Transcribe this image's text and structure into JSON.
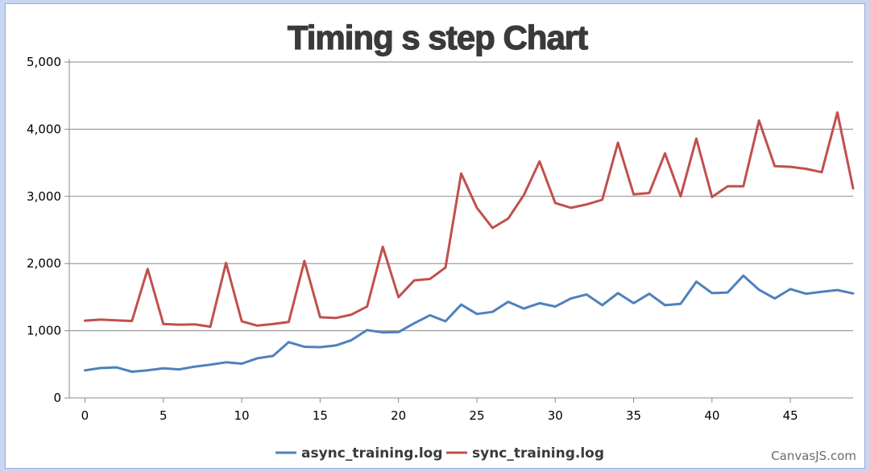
{
  "chart_data": {
    "type": "line",
    "title": "Timing s step Chart",
    "xlabel": "",
    "ylabel": "",
    "xlim": [
      -1,
      49
    ],
    "ylim": [
      0,
      5000
    ],
    "x_ticks": [
      0,
      5,
      10,
      15,
      20,
      25,
      30,
      35,
      40,
      45
    ],
    "x_tick_labels": [
      "0",
      "5",
      "10",
      "15",
      "20",
      "25",
      "30",
      "35",
      "40",
      "45"
    ],
    "y_ticks": [
      0,
      1000,
      2000,
      3000,
      4000,
      5000
    ],
    "y_tick_labels": [
      "0",
      "1,000",
      "2,000",
      "3,000",
      "4,000",
      "5,000"
    ],
    "grid": "horizontal",
    "legend_position": "bottom-center",
    "x": [
      0,
      1,
      2,
      3,
      4,
      5,
      6,
      7,
      8,
      9,
      10,
      11,
      12,
      13,
      14,
      15,
      16,
      17,
      18,
      19,
      20,
      21,
      22,
      23,
      24,
      25,
      26,
      27,
      28,
      29,
      30,
      31,
      32,
      33,
      34,
      35,
      36,
      37,
      38,
      39,
      40,
      41,
      42,
      43,
      44,
      45,
      46,
      47,
      48,
      49
    ],
    "series": [
      {
        "name": "async_training.log",
        "color": "#4f81bc",
        "values": [
          410,
          445,
          455,
          390,
          410,
          440,
          425,
          465,
          495,
          530,
          510,
          590,
          625,
          830,
          760,
          755,
          780,
          860,
          1010,
          975,
          980,
          1110,
          1230,
          1140,
          1390,
          1250,
          1280,
          1430,
          1330,
          1410,
          1360,
          1480,
          1540,
          1380,
          1560,
          1410,
          1550,
          1380,
          1400,
          1730,
          1560,
          1570,
          1820,
          1610,
          1480,
          1620,
          1550,
          1580,
          1605,
          1555
        ]
      },
      {
        "name": "sync_training.log",
        "color": "#c0504e",
        "values": [
          1150,
          1165,
          1155,
          1145,
          1920,
          1100,
          1090,
          1095,
          1060,
          2010,
          1140,
          1075,
          1100,
          1130,
          2040,
          1200,
          1190,
          1240,
          1360,
          2250,
          1500,
          1750,
          1770,
          1940,
          3340,
          2830,
          2530,
          2670,
          3020,
          3520,
          2900,
          2830,
          2880,
          2950,
          3800,
          3030,
          3050,
          3640,
          3000,
          3860,
          2990,
          3150,
          3150,
          4130,
          3450,
          3440,
          3410,
          3360,
          4250,
          3120
        ]
      }
    ]
  },
  "credit": "CanvasJS.com"
}
